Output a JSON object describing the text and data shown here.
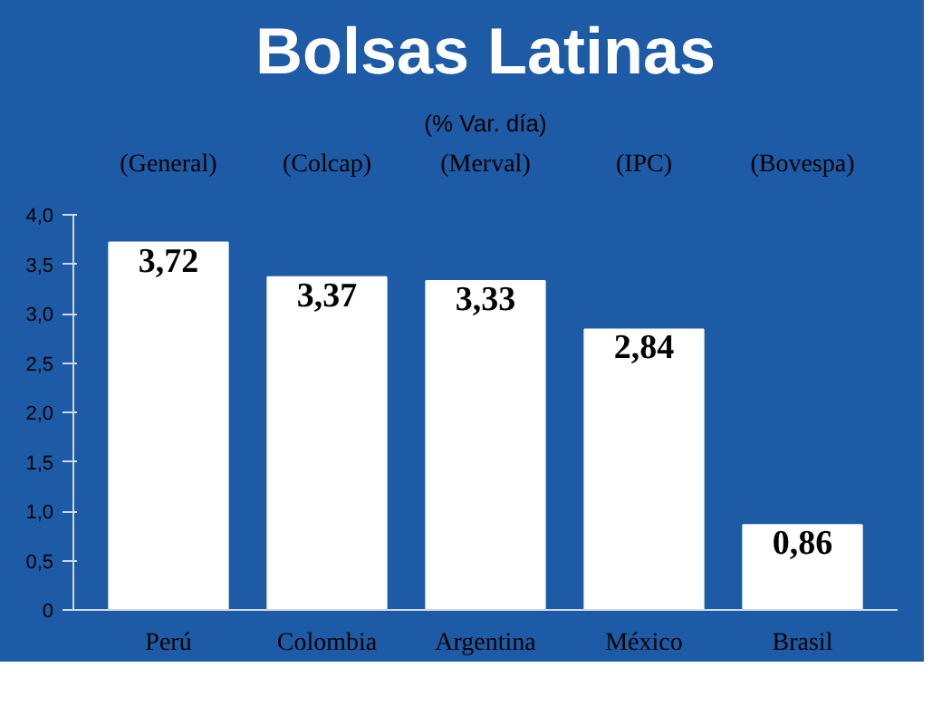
{
  "chart_data": {
    "type": "bar",
    "title": "Bolsas Latinas",
    "subtitle": "(% Var. día)",
    "categories": [
      "Perú",
      "Colombia",
      "Argentina",
      "México",
      "Brasil"
    ],
    "values": [
      3.72,
      3.37,
      3.33,
      2.84,
      0.86
    ],
    "value_labels": [
      "3,72",
      "3,37",
      "3,33",
      "2,84",
      "0,86"
    ],
    "color": "#ffffff",
    "annotations": [
      "(General)",
      "(Colcap)",
      "(Merval)",
      "(IPC)",
      "(Bovespa)"
    ],
    "ylim": [
      0,
      4.0
    ],
    "yticks": [
      {
        "value": 0,
        "label": "0"
      },
      {
        "value": 0.5,
        "label": "0,5"
      },
      {
        "value": 1.0,
        "label": "1,0"
      },
      {
        "value": 1.5,
        "label": "1,5"
      },
      {
        "value": 2.0,
        "label": "2,0"
      },
      {
        "value": 2.5,
        "label": "2,5"
      },
      {
        "value": 3.0,
        "label": "3,0"
      },
      {
        "value": 3.5,
        "label": "3,5"
      },
      {
        "value": 4.0,
        "label": "4,0"
      }
    ],
    "grid": false
  }
}
